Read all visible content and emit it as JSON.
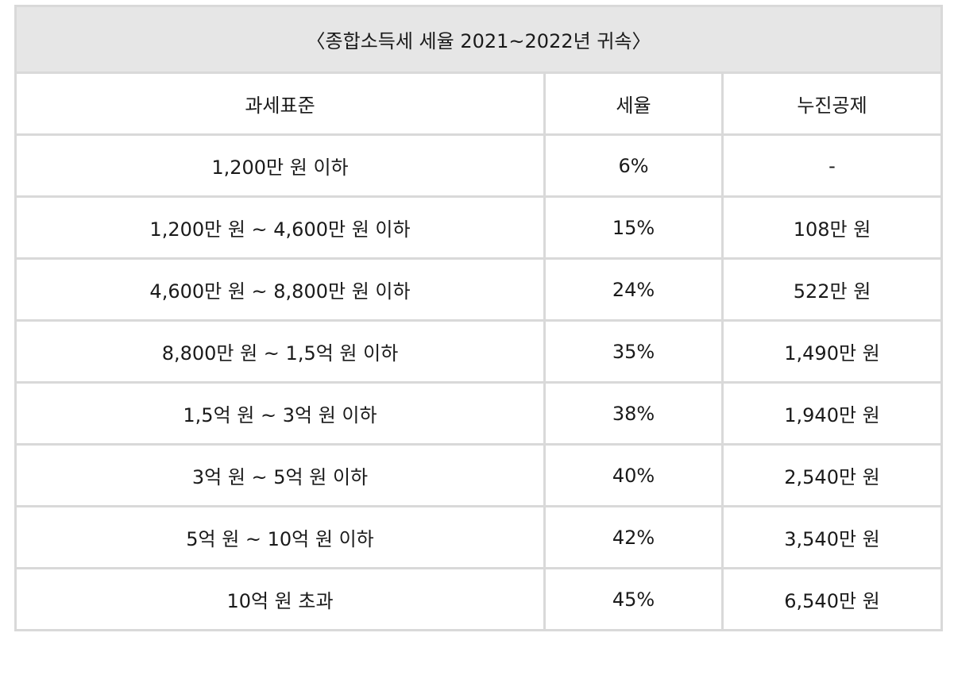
{
  "table": {
    "title": "〈종합소득세 세율 2021~2022년 귀속〉",
    "headers": [
      "과세표준",
      "세율",
      "누진공제"
    ],
    "rows": [
      {
        "bracket": "1,200만 원 이하",
        "rate": "6%",
        "deduction": "-"
      },
      {
        "bracket": "1,200만 원 ~ 4,600만 원 이하",
        "rate": "15%",
        "deduction": "108만 원"
      },
      {
        "bracket": "4,600만 원 ~ 8,800만 원 이하",
        "rate": "24%",
        "deduction": "522만 원"
      },
      {
        "bracket": "8,800만 원 ~ 1,5억 원 이하",
        "rate": "35%",
        "deduction": "1,490만 원"
      },
      {
        "bracket": "1,5억 원 ~ 3억 원 이하",
        "rate": "38%",
        "deduction": "1,940만 원"
      },
      {
        "bracket": "3억 원 ~ 5억 원 이하",
        "rate": "40%",
        "deduction": "2,540만 원"
      },
      {
        "bracket": "5억 원 ~ 10억 원 이하",
        "rate": "42%",
        "deduction": "3,540만 원"
      },
      {
        "bracket": "10억 원 초과",
        "rate": "45%",
        "deduction": "6,540만 원"
      }
    ]
  }
}
